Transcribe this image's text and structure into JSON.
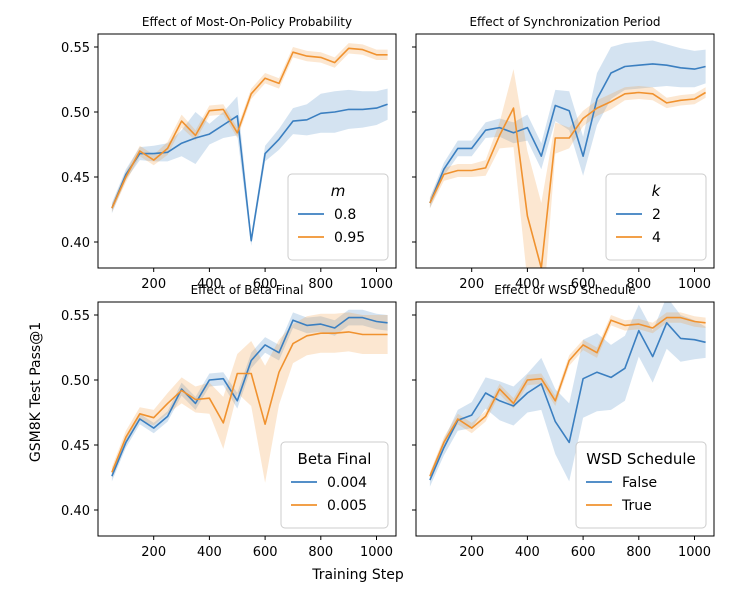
{
  "figure": {
    "ylabel": "GSM8K Test Pass@1",
    "xlabel": "Training Step"
  },
  "colors": {
    "blue": "#3b7fc0",
    "orange": "#f0922f"
  },
  "chart_data": [
    {
      "type": "line",
      "title": "Effect of Most-On-Policy Probability",
      "xlim": [
        0,
        1070
      ],
      "ylim": [
        0.38,
        0.56
      ],
      "xticks": [
        200,
        400,
        600,
        800,
        1000
      ],
      "xtick_labels": [
        "200",
        "400",
        "600",
        "800",
        "1000"
      ],
      "yticks": [
        0.4,
        0.45,
        0.5,
        0.55
      ],
      "ytick_labels": [
        "0.40",
        "0.45",
        "0.50",
        "0.55"
      ],
      "legend": {
        "title": "m",
        "title_italic": true,
        "position": "bottom-right"
      },
      "x": [
        50,
        100,
        150,
        200,
        250,
        300,
        350,
        400,
        450,
        500,
        550,
        600,
        650,
        700,
        750,
        800,
        850,
        900,
        950,
        1000,
        1040
      ],
      "series": [
        {
          "name": "0.8",
          "color": "blue",
          "values": [
            0.426,
            0.452,
            0.468,
            0.468,
            0.469,
            0.476,
            0.48,
            0.483,
            0.49,
            0.497,
            0.401,
            0.468,
            0.479,
            0.493,
            0.494,
            0.499,
            0.5,
            0.502,
            0.502,
            0.503,
            0.506
          ],
          "band": [
            0.004,
            0.004,
            0.005,
            0.006,
            0.007,
            0.01,
            0.02,
            0.008,
            0.01,
            0.015,
            0.004,
            0.006,
            0.008,
            0.01,
            0.012,
            0.015,
            0.016,
            0.015,
            0.014,
            0.013,
            0.012
          ]
        },
        {
          "name": "0.95",
          "color": "orange",
          "values": [
            0.426,
            0.45,
            0.47,
            0.463,
            0.472,
            0.493,
            0.482,
            0.501,
            0.502,
            0.484,
            0.514,
            0.526,
            0.522,
            0.546,
            0.543,
            0.542,
            0.538,
            0.549,
            0.548,
            0.544,
            0.544
          ],
          "band": [
            0.003,
            0.004,
            0.004,
            0.004,
            0.005,
            0.005,
            0.004,
            0.004,
            0.004,
            0.004,
            0.004,
            0.004,
            0.004,
            0.004,
            0.004,
            0.004,
            0.004,
            0.004,
            0.004,
            0.004,
            0.004
          ]
        }
      ]
    },
    {
      "type": "line",
      "title": "Effect of Synchronization Period",
      "xlim": [
        0,
        1070
      ],
      "ylim": [
        0.38,
        0.56
      ],
      "xticks": [
        200,
        400,
        600,
        800,
        1000
      ],
      "xtick_labels": [
        "200",
        "400",
        "600",
        "800",
        "1000"
      ],
      "yticks": [
        0.4,
        0.45,
        0.5,
        0.55
      ],
      "ytick_labels": [
        "",
        "",
        "",
        ""
      ],
      "legend": {
        "title": "k",
        "title_italic": true,
        "position": "bottom-right"
      },
      "x": [
        50,
        100,
        150,
        200,
        250,
        300,
        350,
        400,
        450,
        500,
        550,
        600,
        650,
        700,
        750,
        800,
        850,
        900,
        950,
        1000,
        1040
      ],
      "series": [
        {
          "name": "2",
          "color": "blue",
          "values": [
            0.43,
            0.456,
            0.472,
            0.472,
            0.486,
            0.488,
            0.484,
            0.488,
            0.466,
            0.505,
            0.501,
            0.466,
            0.51,
            0.53,
            0.535,
            0.536,
            0.537,
            0.536,
            0.534,
            0.533,
            0.535
          ],
          "band": [
            0.004,
            0.005,
            0.006,
            0.006,
            0.006,
            0.007,
            0.008,
            0.01,
            0.01,
            0.012,
            0.015,
            0.015,
            0.02,
            0.02,
            0.018,
            0.018,
            0.018,
            0.016,
            0.015,
            0.014,
            0.013
          ]
        },
        {
          "name": "4",
          "color": "orange",
          "values": [
            0.43,
            0.452,
            0.455,
            0.455,
            0.457,
            0.482,
            0.503,
            0.42,
            0.38,
            0.48,
            0.48,
            0.495,
            0.503,
            0.508,
            0.514,
            0.515,
            0.514,
            0.507,
            0.509,
            0.51,
            0.515
          ],
          "band": [
            0.004,
            0.005,
            0.005,
            0.005,
            0.006,
            0.01,
            0.03,
            0.05,
            0.05,
            0.012,
            0.008,
            0.006,
            0.006,
            0.006,
            0.005,
            0.005,
            0.005,
            0.004,
            0.004,
            0.004,
            0.004
          ]
        }
      ]
    },
    {
      "type": "line",
      "title": "Effect of Beta Final",
      "xlim": [
        0,
        1070
      ],
      "ylim": [
        0.38,
        0.56
      ],
      "xticks": [
        200,
        400,
        600,
        800,
        1000
      ],
      "xtick_labels": [
        "200",
        "400",
        "600",
        "800",
        "1000"
      ],
      "yticks": [
        0.4,
        0.45,
        0.5,
        0.55
      ],
      "ytick_labels": [
        "0.40",
        "0.45",
        "0.50",
        "0.55"
      ],
      "legend": {
        "title": "Beta Final",
        "title_italic": false,
        "position": "bottom-right"
      },
      "x": [
        50,
        100,
        150,
        200,
        250,
        300,
        350,
        400,
        450,
        500,
        550,
        600,
        650,
        700,
        750,
        800,
        850,
        900,
        950,
        1000,
        1040
      ],
      "series": [
        {
          "name": "0.004",
          "color": "blue",
          "values": [
            0.426,
            0.452,
            0.47,
            0.463,
            0.472,
            0.493,
            0.482,
            0.5,
            0.501,
            0.484,
            0.515,
            0.527,
            0.521,
            0.546,
            0.542,
            0.543,
            0.54,
            0.548,
            0.548,
            0.545,
            0.544
          ],
          "band": [
            0.004,
            0.004,
            0.004,
            0.004,
            0.004,
            0.005,
            0.005,
            0.005,
            0.005,
            0.006,
            0.006,
            0.006,
            0.006,
            0.006,
            0.006,
            0.006,
            0.006,
            0.006,
            0.006,
            0.006,
            0.006
          ]
        },
        {
          "name": "0.005",
          "color": "orange",
          "values": [
            0.429,
            0.456,
            0.474,
            0.471,
            0.482,
            0.492,
            0.485,
            0.486,
            0.467,
            0.505,
            0.505,
            0.466,
            0.506,
            0.528,
            0.534,
            0.536,
            0.536,
            0.537,
            0.535,
            0.535,
            0.535
          ],
          "band": [
            0.004,
            0.005,
            0.005,
            0.006,
            0.008,
            0.01,
            0.01,
            0.012,
            0.02,
            0.015,
            0.025,
            0.045,
            0.025,
            0.015,
            0.015,
            0.015,
            0.015,
            0.015,
            0.015,
            0.015,
            0.015
          ]
        }
      ]
    },
    {
      "type": "line",
      "title": "Effect of WSD Schedule",
      "xlim": [
        0,
        1070
      ],
      "ylim": [
        0.38,
        0.56
      ],
      "xticks": [
        200,
        400,
        600,
        800,
        1000
      ],
      "xtick_labels": [
        "200",
        "400",
        "600",
        "800",
        "1000"
      ],
      "yticks": [
        0.4,
        0.45,
        0.5,
        0.55
      ],
      "ytick_labels": [
        "",
        "",
        "",
        ""
      ],
      "legend": {
        "title": "WSD Schedule",
        "title_italic": false,
        "position": "bottom-right"
      },
      "x": [
        50,
        100,
        150,
        200,
        250,
        300,
        350,
        400,
        450,
        500,
        550,
        600,
        650,
        700,
        750,
        800,
        850,
        900,
        950,
        1000,
        1040
      ],
      "series": [
        {
          "name": "False",
          "color": "blue",
          "values": [
            0.423,
            0.448,
            0.469,
            0.473,
            0.49,
            0.484,
            0.48,
            0.49,
            0.497,
            0.468,
            0.452,
            0.501,
            0.506,
            0.502,
            0.509,
            0.538,
            0.518,
            0.544,
            0.532,
            0.531,
            0.529
          ],
          "band": [
            0.005,
            0.006,
            0.008,
            0.01,
            0.012,
            0.015,
            0.015,
            0.015,
            0.02,
            0.025,
            0.03,
            0.03,
            0.03,
            0.025,
            0.025,
            0.02,
            0.02,
            0.02,
            0.018,
            0.015,
            0.012
          ]
        },
        {
          "name": "True",
          "color": "orange",
          "values": [
            0.426,
            0.452,
            0.47,
            0.463,
            0.472,
            0.493,
            0.482,
            0.5,
            0.501,
            0.484,
            0.515,
            0.527,
            0.521,
            0.546,
            0.542,
            0.543,
            0.54,
            0.548,
            0.548,
            0.545,
            0.544
          ],
          "band": [
            0.003,
            0.004,
            0.004,
            0.004,
            0.004,
            0.004,
            0.004,
            0.004,
            0.004,
            0.004,
            0.004,
            0.004,
            0.004,
            0.004,
            0.004,
            0.004,
            0.004,
            0.004,
            0.004,
            0.004,
            0.004
          ]
        }
      ]
    }
  ]
}
